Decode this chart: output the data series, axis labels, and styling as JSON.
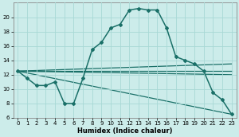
{
  "xlabel": "Humidex (Indice chaleur)",
  "bg_color": "#ccecea",
  "grid_color": "#a8d8d5",
  "line_color": "#1a7068",
  "xlim": [
    -0.5,
    23.5
  ],
  "ylim": [
    6,
    22
  ],
  "yticks": [
    6,
    8,
    10,
    12,
    14,
    16,
    18,
    20
  ],
  "xticks": [
    0,
    1,
    2,
    3,
    4,
    5,
    6,
    7,
    8,
    9,
    10,
    11,
    12,
    13,
    14,
    15,
    16,
    17,
    18,
    19,
    20,
    21,
    22,
    23
  ],
  "main_x": [
    0,
    1,
    2,
    3,
    4,
    5,
    6,
    7,
    8,
    9,
    10,
    11,
    12,
    13,
    14,
    15,
    16,
    17,
    18,
    19,
    20,
    21,
    22,
    23
  ],
  "main_y": [
    12.5,
    11.5,
    10.5,
    10.5,
    11.0,
    8.0,
    8.0,
    11.5,
    15.5,
    16.5,
    18.5,
    19.0,
    21.0,
    21.2,
    21.0,
    21.0,
    18.5,
    14.5,
    14.0,
    13.5,
    12.5,
    9.5,
    8.5,
    6.5
  ],
  "trend1_x": [
    0,
    23
  ],
  "trend1_y": [
    12.5,
    13.5
  ],
  "trend2_x": [
    0,
    23
  ],
  "trend2_y": [
    12.5,
    12.5
  ],
  "trend3_x": [
    0,
    23
  ],
  "trend3_y": [
    12.5,
    12.0
  ],
  "trend4_x": [
    0,
    23
  ],
  "trend4_y": [
    12.5,
    6.5
  ],
  "xlabel_fontsize": 6.0,
  "tick_fontsize": 5.0
}
